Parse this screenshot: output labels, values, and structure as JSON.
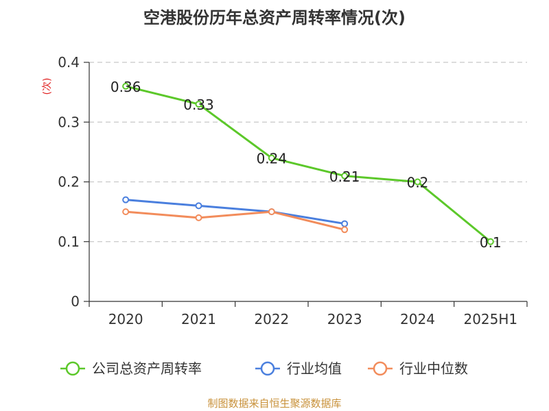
{
  "chart_data": {
    "type": "line",
    "title": "空港股份历年总资产周转率情况(次)",
    "ylabel": "(次)",
    "categories": [
      "2020",
      "2021",
      "2022",
      "2023",
      "2024",
      "2025H1"
    ],
    "ylim": [
      0,
      0.4
    ],
    "yticks": [
      "0",
      "0.1",
      "0.2",
      "0.3",
      "0.4"
    ],
    "grid": true,
    "legend_position": "bottom",
    "series": [
      {
        "name": "公司总资产周转率",
        "color": "#5cc82a",
        "values": [
          0.36,
          0.33,
          0.24,
          0.21,
          0.2,
          0.1
        ],
        "labels": [
          "0.36",
          "0.33",
          "0.24",
          "0.21",
          "0.2",
          "0.1"
        ]
      },
      {
        "name": "行业均值",
        "color": "#4a7fde",
        "values": [
          0.17,
          0.16,
          0.15,
          0.13,
          null,
          null
        ]
      },
      {
        "name": "行业中位数",
        "color": "#f28c5b",
        "values": [
          0.15,
          0.14,
          0.15,
          0.12,
          null,
          null
        ]
      }
    ]
  },
  "source": "制图数据来自恒生聚源数据库"
}
